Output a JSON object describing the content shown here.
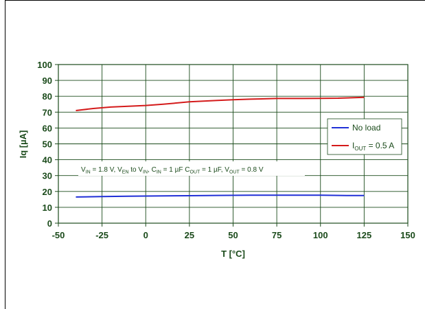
{
  "chart_data": {
    "type": "line",
    "xlabel": "T [°C]",
    "ylabel": "Iq [µA]",
    "xlim": [
      -50,
      150
    ],
    "ylim": [
      0,
      100
    ],
    "xticks": [
      -50,
      -25,
      0,
      25,
      50,
      75,
      100,
      125,
      150
    ],
    "yticks": [
      0,
      10,
      20,
      30,
      40,
      50,
      60,
      70,
      80,
      90,
      100
    ],
    "grid": true,
    "legend_position": "right",
    "annotation": {
      "parts": [
        {
          "t": "V",
          "s": "IN",
          "r": " = 1.8 V, "
        },
        {
          "t": "V",
          "s": "EN",
          "r": " to V"
        },
        {
          "t": "",
          "s": "IN",
          "r": ", "
        },
        {
          "t": "C",
          "s": "IN",
          "r": " = 1 µF C"
        },
        {
          "t": "",
          "s": "OUT",
          "r": " = 1 µF, "
        },
        {
          "t": "V",
          "s": "OUT",
          "r": " = 0.8 V"
        }
      ]
    },
    "series": [
      {
        "name": "No load",
        "color": "#1f2fd6",
        "x": [
          -40,
          -25,
          -10,
          0,
          25,
          40,
          60,
          80,
          100,
          115,
          125
        ],
        "y": [
          16.5,
          16.8,
          17.0,
          17.1,
          17.3,
          17.5,
          17.6,
          17.6,
          17.6,
          17.4,
          17.4
        ]
      },
      {
        "name_main": "I",
        "name_sub": "OUT",
        "name_rest": " = 0.5 A",
        "color": "#d41a1a",
        "x": [
          -40,
          -30,
          -20,
          -10,
          0,
          10,
          25,
          40,
          50,
          60,
          75,
          90,
          100,
          110,
          125
        ],
        "y": [
          71,
          72.3,
          73.2,
          73.7,
          74.2,
          75.0,
          76.5,
          77.3,
          77.8,
          78.2,
          78.6,
          78.6,
          78.7,
          78.8,
          79.3
        ]
      }
    ]
  }
}
